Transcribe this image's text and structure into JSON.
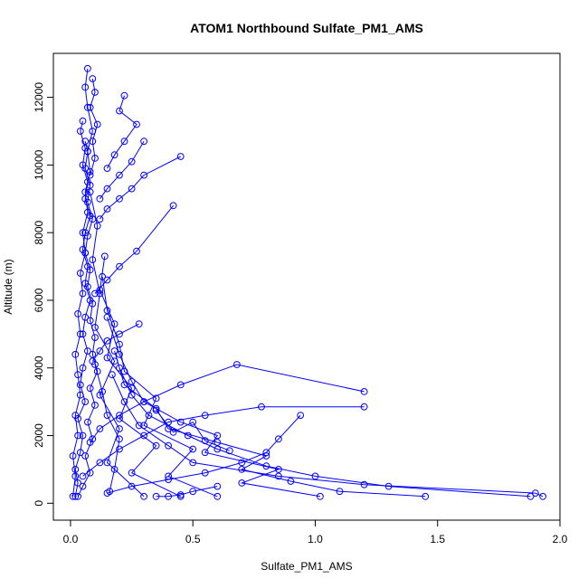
{
  "chart_data": {
    "type": "line",
    "title": "ATOM1 Northbound Sulfate_PM1_AMS",
    "xlabel": "Sulfate_PM1_AMS",
    "ylabel": "Altitude (m)",
    "xlim": [
      -0.07,
      2.0
    ],
    "ylim": [
      -500,
      13300
    ],
    "xticks": [
      0.0,
      0.5,
      1.0,
      1.5,
      2.0
    ],
    "xtick_labels": [
      "0.0",
      "0.5",
      "1.0",
      "1.5",
      "2.0"
    ],
    "yticks": [
      0,
      2000,
      4000,
      6000,
      8000,
      10000,
      12000
    ],
    "ytick_labels": [
      "0",
      "2000",
      "4000",
      "6000",
      "8000",
      "10000",
      "12000"
    ],
    "grid": false,
    "color": "#0000ff",
    "marker": "open-circle",
    "series": [
      {
        "points": [
          [
            0.02,
            200
          ],
          [
            0.03,
            600
          ],
          [
            0.02,
            1000
          ],
          [
            0.04,
            1500
          ],
          [
            0.05,
            2000
          ],
          [
            0.03,
            2500
          ],
          [
            0.06,
            3000
          ],
          [
            0.04,
            3500
          ],
          [
            0.05,
            4000
          ],
          [
            0.07,
            4500
          ],
          [
            0.05,
            5000
          ],
          [
            0.06,
            5500
          ],
          [
            0.08,
            6000
          ],
          [
            0.06,
            6500
          ],
          [
            0.07,
            7000
          ],
          [
            0.05,
            7500
          ],
          [
            0.06,
            8000
          ],
          [
            0.08,
            8500
          ],
          [
            0.06,
            9000
          ],
          [
            0.07,
            9500
          ],
          [
            0.05,
            10000
          ],
          [
            0.06,
            10500
          ],
          [
            0.04,
            11000
          ],
          [
            0.05,
            11300
          ]
        ]
      },
      {
        "points": [
          [
            0.03,
            200
          ],
          [
            0.05,
            500
          ],
          [
            0.08,
            900
          ],
          [
            0.06,
            1400
          ],
          [
            0.09,
            1900
          ],
          [
            0.07,
            2400
          ],
          [
            0.1,
            2900
          ],
          [
            0.08,
            3400
          ],
          [
            0.11,
            3900
          ],
          [
            0.09,
            4400
          ],
          [
            0.1,
            4900
          ],
          [
            0.08,
            5400
          ],
          [
            0.09,
            5900
          ],
          [
            0.07,
            6400
          ],
          [
            0.08,
            6900
          ],
          [
            0.06,
            7400
          ],
          [
            0.07,
            7900
          ],
          [
            0.09,
            8400
          ],
          [
            0.07,
            8900
          ],
          [
            0.08,
            9400
          ],
          [
            0.06,
            9900
          ],
          [
            0.07,
            10400
          ],
          [
            0.06,
            10700
          ]
        ]
      },
      {
        "points": [
          [
            0.01,
            200
          ],
          [
            0.02,
            800
          ],
          [
            0.01,
            1400
          ],
          [
            0.03,
            2000
          ],
          [
            0.02,
            2600
          ],
          [
            0.04,
            3200
          ],
          [
            0.03,
            3800
          ],
          [
            0.02,
            4400
          ],
          [
            0.04,
            5000
          ],
          [
            0.03,
            5600
          ],
          [
            0.05,
            6200
          ],
          [
            0.04,
            6800
          ],
          [
            0.06,
            7400
          ],
          [
            0.05,
            8000
          ],
          [
            0.07,
            8600
          ],
          [
            0.06,
            9200
          ],
          [
            0.08,
            9800
          ],
          [
            0.07,
            10400
          ],
          [
            0.09,
            11000
          ],
          [
            0.07,
            11700
          ],
          [
            0.06,
            12300
          ],
          [
            0.07,
            12850
          ]
        ]
      },
      {
        "points": [
          [
            0.09,
            12550
          ],
          [
            0.1,
            12150
          ],
          [
            0.08,
            11700
          ],
          [
            0.11,
            11200
          ],
          [
            0.09,
            10700
          ],
          [
            0.1,
            10200
          ],
          [
            0.08,
            9700
          ]
        ]
      },
      {
        "points": [
          [
            0.3,
            200
          ],
          [
            0.15,
            1200
          ],
          [
            0.2,
            2200
          ],
          [
            0.12,
            3200
          ],
          [
            0.18,
            4200
          ],
          [
            0.1,
            5200
          ],
          [
            0.12,
            6200
          ],
          [
            0.09,
            7200
          ],
          [
            0.11,
            8200
          ],
          [
            0.08,
            9200
          ]
        ]
      },
      {
        "points": [
          [
            0.45,
            200
          ],
          [
            0.25,
            900
          ],
          [
            0.35,
            1700
          ],
          [
            0.2,
            2500
          ],
          [
            0.25,
            3400
          ],
          [
            0.15,
            4300
          ],
          [
            0.18,
            5300
          ],
          [
            0.12,
            6300
          ],
          [
            0.14,
            7300
          ]
        ]
      },
      {
        "points": [
          [
            0.6,
            200
          ],
          [
            0.4,
            800
          ],
          [
            0.5,
            1600
          ],
          [
            0.3,
            2300
          ],
          [
            0.35,
            3100
          ],
          [
            0.22,
            3900
          ],
          [
            0.2,
            4700
          ],
          [
            0.15,
            5700
          ],
          [
            0.13,
            6700
          ]
        ]
      },
      {
        "points": [
          [
            1.02,
            200
          ],
          [
            0.7,
            600
          ],
          [
            0.85,
            1000
          ],
          [
            0.55,
            1500
          ],
          [
            0.6,
            2000
          ],
          [
            0.45,
            2400
          ],
          [
            0.3,
            3000
          ],
          [
            0.25,
            3600
          ],
          [
            0.2,
            4400
          ],
          [
            0.15,
            5500
          ]
        ]
      },
      {
        "points": [
          [
            1.45,
            200
          ],
          [
            1.1,
            350
          ],
          [
            0.9,
            650
          ],
          [
            0.7,
            1000
          ],
          [
            0.8,
            1400
          ],
          [
            0.6,
            1800
          ],
          [
            0.4,
            2200
          ],
          [
            0.35,
            2800
          ],
          [
            0.22,
            3500
          ],
          [
            0.18,
            4500
          ]
        ]
      },
      {
        "points": [
          [
            1.88,
            200
          ],
          [
            1.3,
            500
          ],
          [
            1.0,
            800
          ],
          [
            0.8,
            1100
          ],
          [
            0.6,
            1600
          ],
          [
            0.48,
            2000
          ],
          [
            0.32,
            2600
          ],
          [
            0.25,
            3200
          ],
          [
            0.2,
            4000
          ]
        ]
      },
      {
        "points": [
          [
            1.93,
            200
          ],
          [
            1.9,
            300
          ],
          [
            1.2,
            550
          ],
          [
            0.85,
            800
          ],
          [
            0.5,
            1200
          ],
          [
            0.4,
            1700
          ],
          [
            0.28,
            2300
          ],
          [
            0.22,
            3000
          ],
          [
            0.17,
            3800
          ]
        ]
      },
      {
        "points": [
          [
            1.2,
            2850
          ],
          [
            0.78,
            2850
          ],
          [
            0.55,
            2600
          ],
          [
            0.4,
            2400
          ],
          [
            0.3,
            2000
          ],
          [
            0.2,
            1600
          ],
          [
            0.12,
            1200
          ],
          [
            0.05,
            800
          ]
        ]
      },
      {
        "points": [
          [
            1.2,
            3300
          ],
          [
            0.68,
            4100
          ],
          [
            0.45,
            3500
          ],
          [
            0.3,
            3000
          ],
          [
            0.2,
            2600
          ],
          [
            0.12,
            2200
          ],
          [
            0.08,
            1800
          ]
        ]
      },
      {
        "points": [
          [
            0.94,
            2600
          ],
          [
            0.85,
            1900
          ],
          [
            0.8,
            1500
          ],
          [
            0.7,
            1200
          ],
          [
            0.55,
            900
          ],
          [
            0.4,
            700
          ],
          [
            0.25,
            500
          ],
          [
            0.15,
            300
          ]
        ]
      },
      {
        "points": [
          [
            0.45,
            10250
          ],
          [
            0.3,
            9700
          ],
          [
            0.25,
            9300
          ],
          [
            0.2,
            9000
          ],
          [
            0.15,
            8700
          ],
          [
            0.12,
            8400
          ]
        ]
      },
      {
        "points": [
          [
            0.42,
            8800
          ],
          [
            0.27,
            7450
          ],
          [
            0.2,
            7000
          ],
          [
            0.15,
            6600
          ],
          [
            0.1,
            6200
          ]
        ]
      },
      {
        "points": [
          [
            0.3,
            10700
          ],
          [
            0.25,
            10100
          ],
          [
            0.2,
            9700
          ],
          [
            0.15,
            9300
          ],
          [
            0.12,
            9000
          ]
        ]
      },
      {
        "points": [
          [
            0.22,
            12050
          ],
          [
            0.2,
            11600
          ],
          [
            0.27,
            11200
          ],
          [
            0.22,
            10700
          ],
          [
            0.18,
            10300
          ],
          [
            0.15,
            9900
          ]
        ]
      },
      {
        "points": [
          [
            0.28,
            5300
          ],
          [
            0.2,
            5000
          ],
          [
            0.15,
            4800
          ],
          [
            0.12,
            4500
          ],
          [
            0.09,
            4200
          ]
        ]
      },
      {
        "points": [
          [
            0.6,
            500
          ],
          [
            0.5,
            350
          ],
          [
            0.45,
            250
          ],
          [
            0.4,
            200
          ],
          [
            0.35,
            200
          ]
        ]
      },
      {
        "points": [
          [
            0.65,
            1550
          ],
          [
            0.55,
            1850
          ],
          [
            0.5,
            2400
          ],
          [
            0.42,
            2100
          ],
          [
            0.35,
            2750
          ]
        ]
      },
      {
        "points": [
          [
            0.16,
            350
          ],
          [
            0.18,
            1000
          ],
          [
            0.2,
            1900
          ],
          [
            0.15,
            2600
          ],
          [
            0.13,
            3300
          ],
          [
            0.1,
            4100
          ]
        ]
      }
    ]
  }
}
